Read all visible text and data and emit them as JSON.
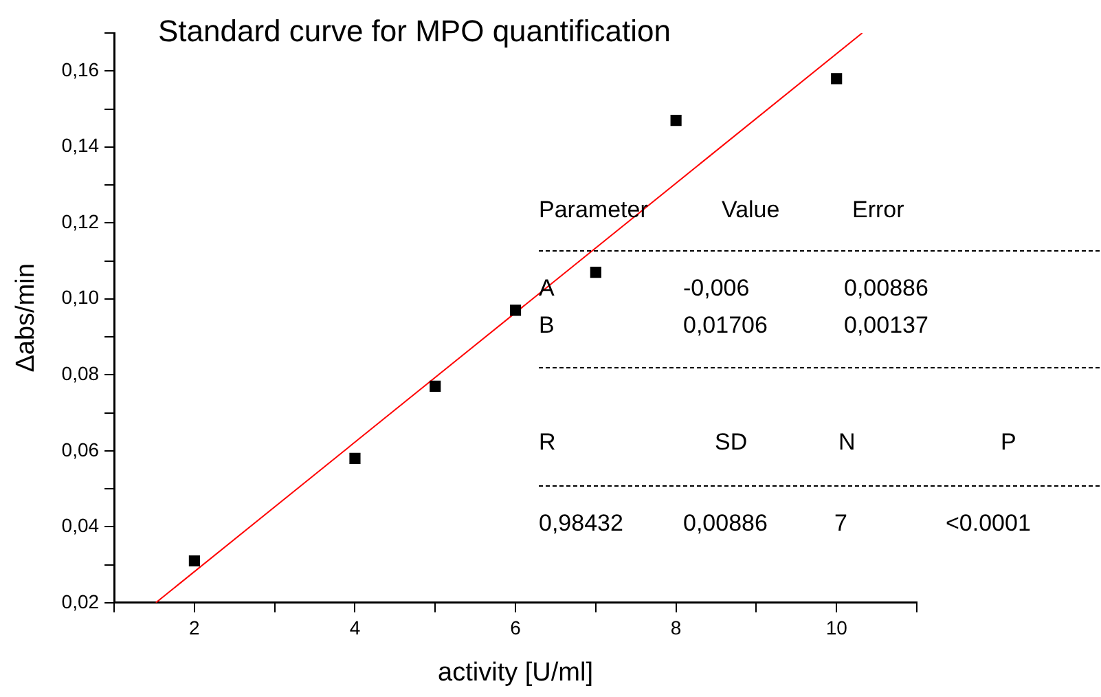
{
  "chart_data": {
    "type": "scatter",
    "title": "Standard curve for MPO quantification",
    "xlabel": "activity [U/ml]",
    "ylabel": "Δabs/min",
    "x": [
      2,
      4,
      5,
      6,
      7,
      8,
      10
    ],
    "series": [
      {
        "type": "scatter",
        "color": "#000000",
        "marker": "square",
        "values": [
          0.031,
          0.058,
          0.077,
          0.097,
          0.107,
          0.147,
          0.158
        ]
      },
      {
        "type": "line",
        "color": "#ff0000",
        "marker": "none",
        "x": [
          1.52,
          10.32
        ],
        "values": [
          0.02,
          0.17
        ]
      }
    ],
    "xlim": [
      1,
      11
    ],
    "xticks": [
      {
        "value": 1,
        "label": null
      },
      2,
      {
        "value": 3,
        "label": null
      },
      4,
      {
        "value": 5,
        "label": null
      },
      6,
      {
        "value": 7,
        "label": null
      },
      8,
      {
        "value": 9,
        "label": null
      },
      10,
      {
        "value": 11,
        "label": null
      }
    ],
    "ylim": [
      0.02,
      0.17
    ],
    "yticks": [
      {
        "value": 0.02,
        "label": "0,02"
      },
      {
        "value": 0.03,
        "label": null
      },
      {
        "value": 0.04,
        "label": "0,04"
      },
      {
        "value": 0.05,
        "label": null
      },
      {
        "value": 0.06,
        "label": "0,06"
      },
      {
        "value": 0.07,
        "label": null
      },
      {
        "value": 0.08,
        "label": "0,08"
      },
      {
        "value": 0.09,
        "label": null
      },
      {
        "value": 0.1,
        "label": "0,10"
      },
      {
        "value": 0.11,
        "label": null
      },
      {
        "value": 0.12,
        "label": "0,12"
      },
      {
        "value": 0.13,
        "label": null
      },
      {
        "value": 0.14,
        "label": "0,14"
      },
      {
        "value": 0.15,
        "label": null
      },
      {
        "value": 0.16,
        "label": "0,16"
      },
      {
        "value": 0.17,
        "label": null
      }
    ],
    "grid": false,
    "legend": false,
    "annotations": [
      "Parameter",
      "Value",
      "Error",
      "A",
      "-0,006",
      "0,00886",
      "B",
      "0,01706",
      "0,00137",
      "R",
      "SD",
      "N",
      "P",
      "0,98432",
      "0,00886",
      "7",
      "<0.0001"
    ]
  }
}
